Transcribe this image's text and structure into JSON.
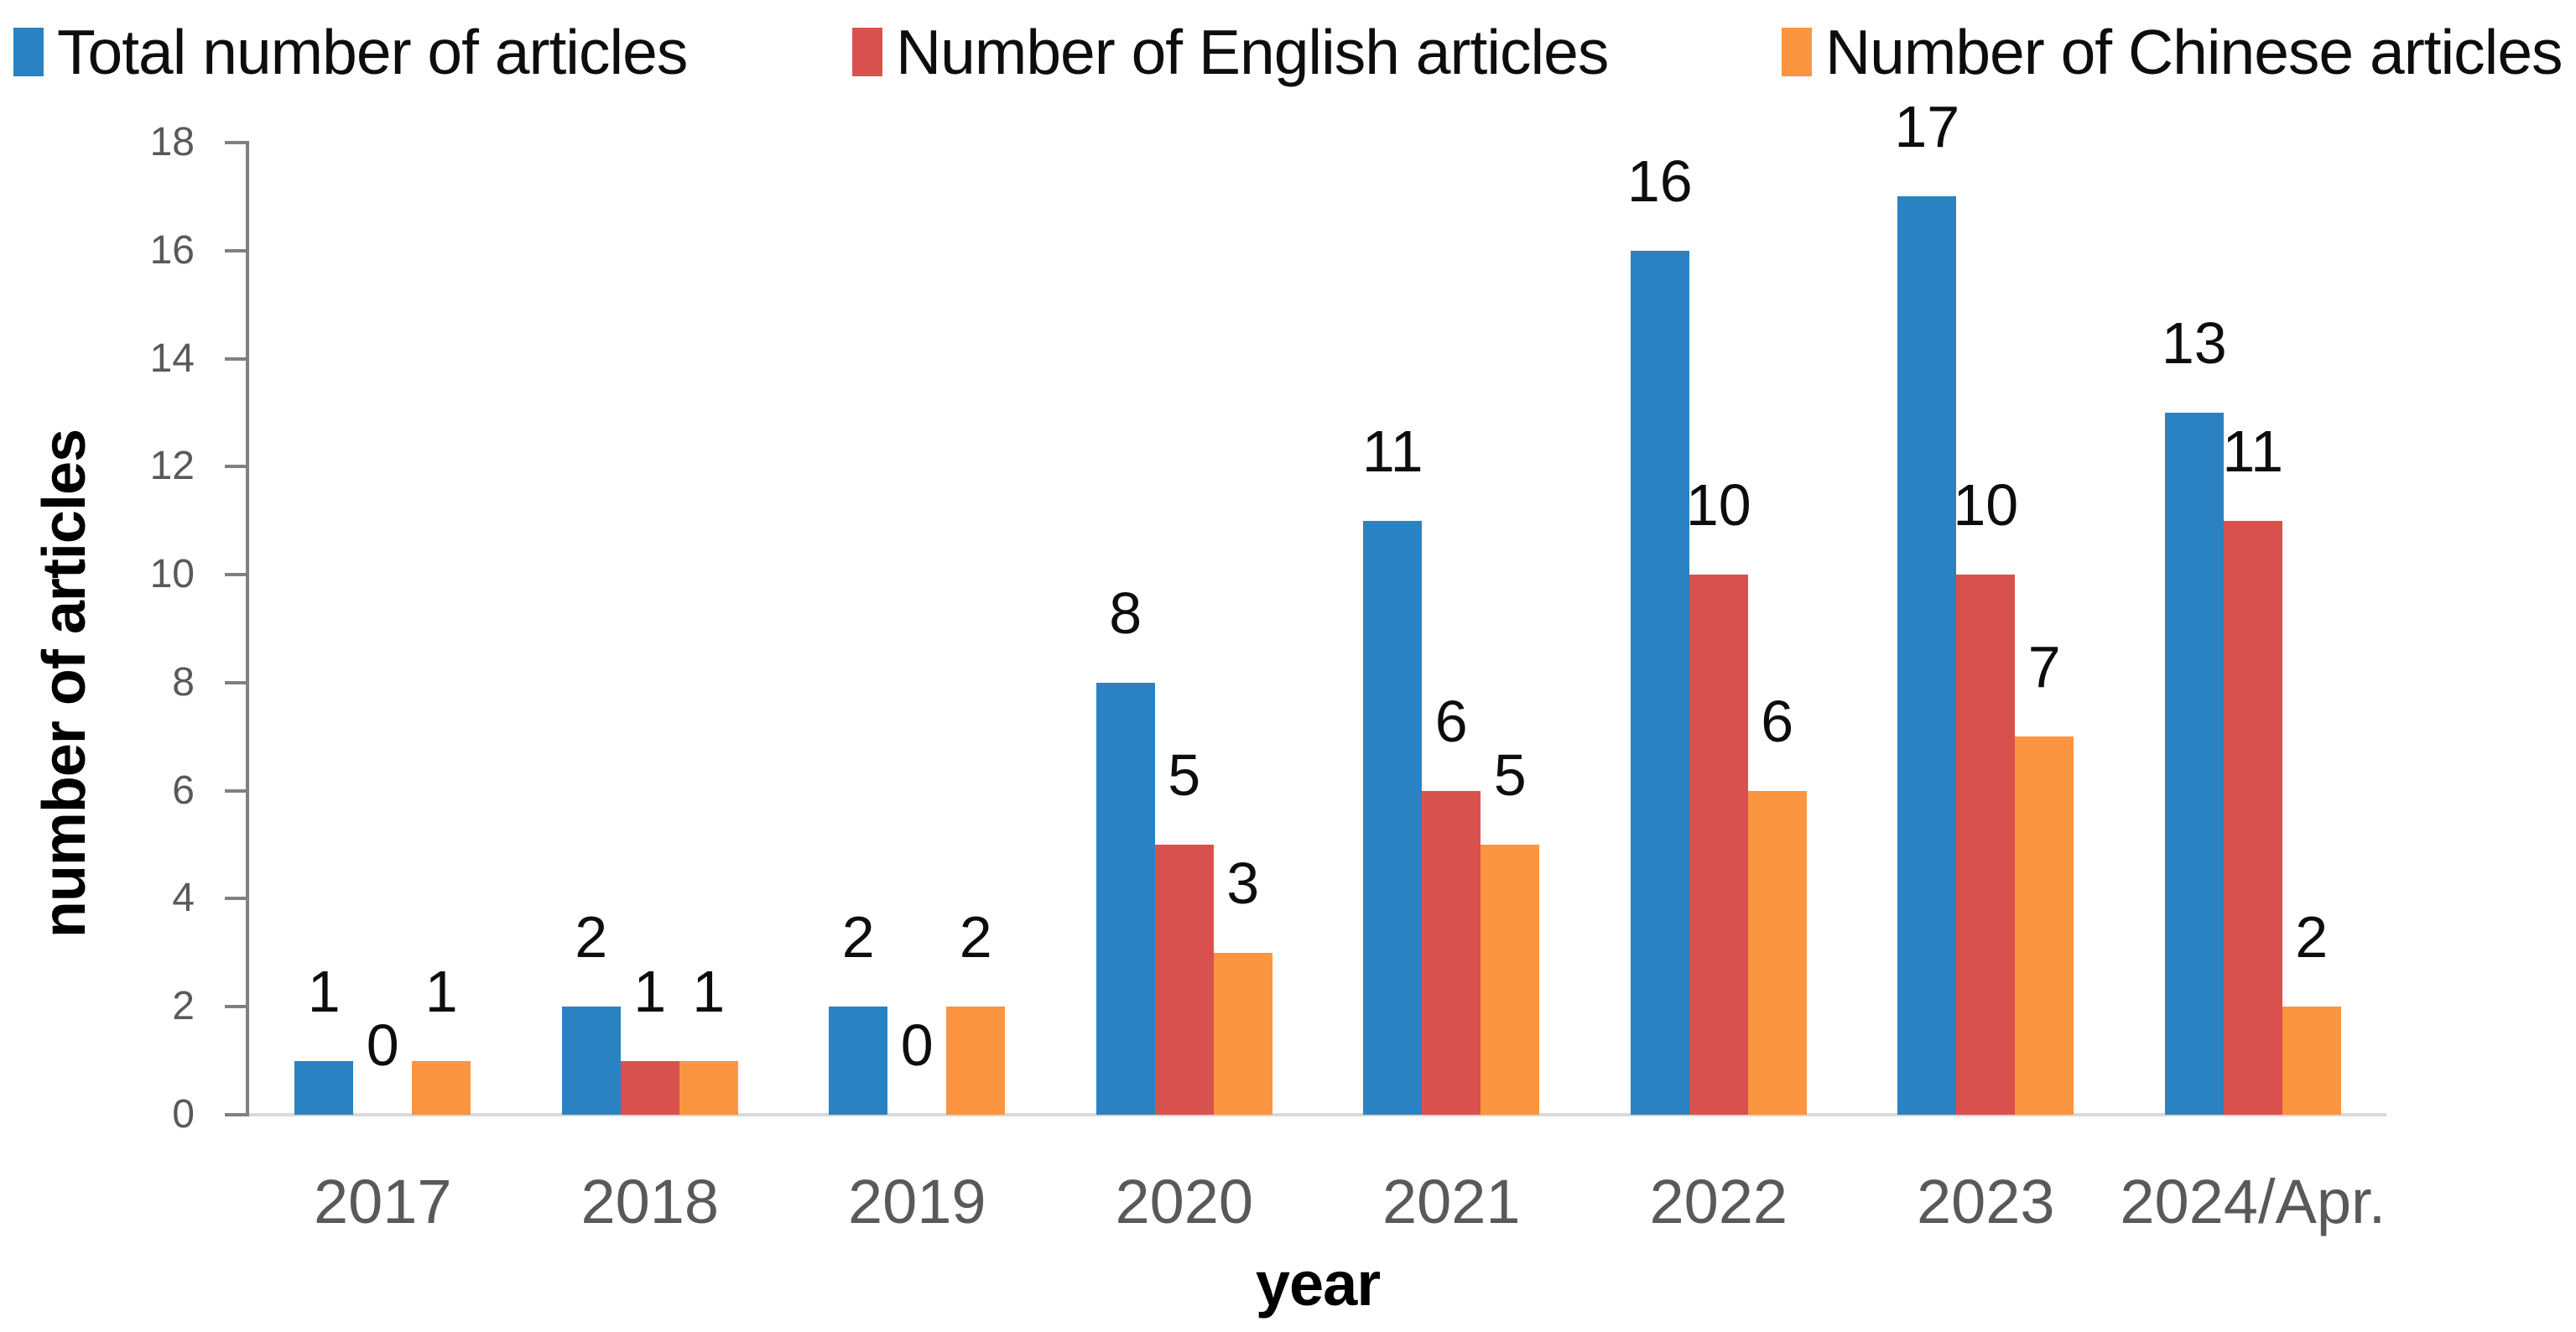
{
  "chart_data": {
    "type": "bar",
    "title": "",
    "xlabel": "year",
    "ylabel": "number of articles",
    "categories": [
      "2017",
      "2018",
      "2019",
      "2020",
      "2021",
      "2022",
      "2023",
      "2024/Apr."
    ],
    "series": [
      {
        "name": "Total number of articles",
        "color": "#2A82C2",
        "values": [
          1,
          2,
          2,
          8,
          11,
          16,
          17,
          13
        ]
      },
      {
        "name": "Number of English articles",
        "color": "#D9514E",
        "values": [
          0,
          1,
          0,
          5,
          6,
          10,
          10,
          11
        ]
      },
      {
        "name": "Number of Chinese articles",
        "color": "#FB9540",
        "values": [
          1,
          1,
          2,
          3,
          5,
          6,
          7,
          2
        ]
      }
    ],
    "ylim": [
      0,
      18
    ],
    "yticks": [
      18,
      16,
      14,
      12,
      10,
      8,
      6,
      4,
      2,
      0
    ],
    "grid": false,
    "legend_position": "top",
    "data_labels": true,
    "colors": {
      "axis_line": "#808080",
      "baseline": "#D9D9D9",
      "tick_label": "#595959",
      "label_text": "#0D0D0D"
    }
  }
}
